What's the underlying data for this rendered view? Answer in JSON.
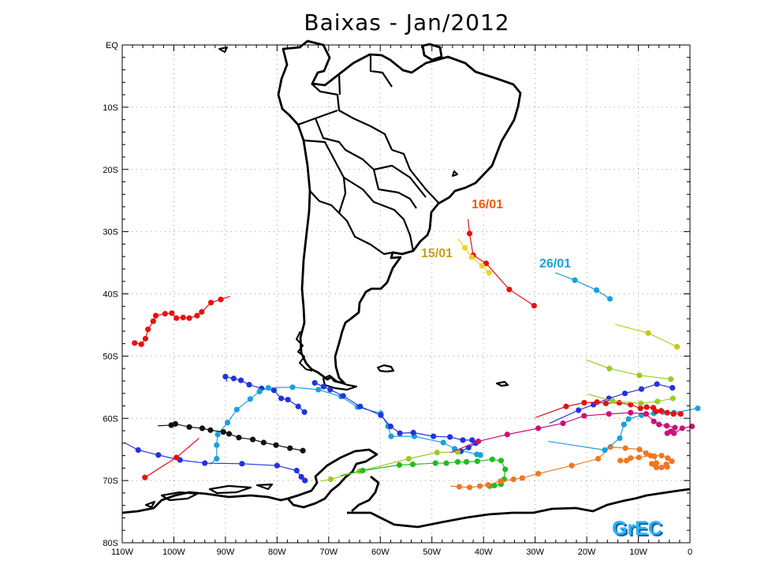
{
  "title": "Baixas - Jan/2012",
  "axes": {
    "y_ticks": [
      "EQ",
      "10S",
      "20S",
      "30S",
      "40S",
      "50S",
      "60S",
      "70S",
      "80S"
    ],
    "x_ticks": [
      "110W",
      "100W",
      "90W",
      "80W",
      "70W",
      "60W",
      "50W",
      "40W",
      "30W",
      "20W",
      "10W",
      "0"
    ],
    "lon_range": [
      -110,
      0
    ],
    "lat_range": [
      -80,
      0
    ],
    "grid": "dotted"
  },
  "logo": "GrEC",
  "labels": [
    {
      "text": "16/01",
      "color": "#f05a0a"
    },
    {
      "text": "15/01",
      "color": "#c8a012"
    },
    {
      "text": "26/01",
      "color": "#1aa0dc"
    }
  ],
  "tracks": [
    {
      "color": "#e81010",
      "points": [
        [
          -43,
          -28
        ],
        [
          -42.7,
          -30.3
        ],
        [
          -42,
          -33.8
        ],
        [
          -39.5,
          -35.1
        ],
        [
          -35,
          -39.3
        ],
        [
          -30.2,
          -41.9
        ]
      ]
    },
    {
      "color": "#ecd520",
      "points": [
        [
          -45,
          -31.1
        ],
        [
          -43.6,
          -32.6
        ],
        [
          -42.3,
          -34.1
        ],
        [
          -40.3,
          -35.5
        ],
        [
          -38.9,
          -36.6
        ]
      ]
    },
    {
      "color": "#1aa0dc",
      "points": [
        [
          -26.1,
          -36.6
        ],
        [
          -22.3,
          -37.8
        ],
        [
          -18.1,
          -39.4
        ],
        [
          -15.5,
          -40.8
        ]
      ]
    },
    {
      "color": "#e81010",
      "points": [
        [
          -89.1,
          -40.4
        ],
        [
          -90.9,
          -40.9
        ],
        [
          -92.8,
          -41.4
        ],
        [
          -94.6,
          -42.9
        ],
        [
          -95.5,
          -43.5
        ],
        [
          -97,
          -43.9
        ],
        [
          -98.2,
          -43.8
        ],
        [
          -99.5,
          -43.9
        ],
        [
          -100.4,
          -43.1
        ],
        [
          -101.7,
          -43.2
        ],
        [
          -103.5,
          -43.5
        ],
        [
          -104,
          -44.4
        ],
        [
          -105,
          -45.7
        ],
        [
          -105.5,
          -47.2
        ],
        [
          -106.3,
          -48.1
        ],
        [
          -107.6,
          -47.9
        ]
      ]
    },
    {
      "color": "#2233dd",
      "points": [
        [
          -89.7,
          -54.1
        ],
        [
          -90,
          -53.3
        ],
        [
          -88.4,
          -53.6
        ],
        [
          -87,
          -53.9
        ],
        [
          -85.4,
          -54.6
        ],
        [
          -83,
          -55.2
        ],
        [
          -80.6,
          -55.5
        ],
        [
          -79.2,
          -56.8
        ],
        [
          -77.9,
          -57
        ],
        [
          -75.9,
          -58.1
        ],
        [
          -74.7,
          -59
        ]
      ]
    },
    {
      "color": "#1aa0dc",
      "points": [
        [
          -93,
          -67.4
        ],
        [
          -91.7,
          -66.5
        ],
        [
          -91.7,
          -64.3
        ],
        [
          -91.5,
          -62.6
        ],
        [
          -89.6,
          -60.7
        ],
        [
          -87.8,
          -58.6
        ],
        [
          -85.2,
          -56.9
        ],
        [
          -83.4,
          -55.7
        ],
        [
          -81.7,
          -55.1
        ],
        [
          -77,
          -55
        ],
        [
          -72,
          -55.4
        ],
        [
          -67.6,
          -56.5
        ],
        [
          -64.4,
          -58.2
        ],
        [
          -59.9,
          -59.2
        ],
        [
          -58.5,
          -61.3
        ],
        [
          -57.9,
          -62.9
        ],
        [
          -53.4,
          -62.9
        ],
        [
          -47.8,
          -63.9
        ],
        [
          -45.6,
          -64.9
        ],
        [
          -41.3,
          -65.8
        ],
        [
          -40.6,
          -65.9
        ]
      ]
    },
    {
      "color": "#2233dd",
      "points": [
        [
          -69.4,
          -55.5
        ],
        [
          -71,
          -54.9
        ],
        [
          -72.7,
          -54.3
        ],
        [
          -69.7,
          -55.4
        ],
        [
          -67.2,
          -56.4
        ],
        [
          -63.9,
          -58.1
        ],
        [
          -59.9,
          -59.5
        ],
        [
          -58,
          -61.3
        ],
        [
          -56.2,
          -62.4
        ],
        [
          -53.6,
          -62.3
        ],
        [
          -49.7,
          -62.9
        ],
        [
          -46.5,
          -63
        ],
        [
          -44,
          -63.5
        ],
        [
          -42.2,
          -63.5
        ],
        [
          -41.5,
          -64
        ],
        [
          -42.9,
          -64.7
        ],
        [
          -44.4,
          -65.3
        ]
      ]
    },
    {
      "color": "#111111",
      "points": [
        [
          -103.1,
          -61.2
        ],
        [
          -100.5,
          -61.1
        ],
        [
          -99.7,
          -60.9
        ],
        [
          -97,
          -61.4
        ],
        [
          -94.5,
          -61.6
        ],
        [
          -92.9,
          -61.9
        ],
        [
          -90.4,
          -62.2
        ],
        [
          -89.3,
          -62.5
        ],
        [
          -87.4,
          -63.1
        ],
        [
          -84.7,
          -63.4
        ],
        [
          -82.6,
          -63.9
        ],
        [
          -80.2,
          -64.3
        ],
        [
          -77.5,
          -64.8
        ],
        [
          -75,
          -65.2
        ]
      ]
    },
    {
      "color": "#2233dd",
      "points": [
        [
          -109.6,
          -63.9
        ],
        [
          -106.9,
          -65.1
        ],
        [
          -103,
          -65.9
        ],
        [
          -98.8,
          -66.7
        ],
        [
          -94,
          -67.2
        ],
        [
          -86.8,
          -67.3
        ],
        [
          -80,
          -67.6
        ],
        [
          -76.2,
          -68.4
        ],
        [
          -75.3,
          -69.4
        ],
        [
          -74.6,
          -70
        ]
      ]
    },
    {
      "color": "#e81010",
      "points": [
        [
          -95.1,
          -63.2
        ],
        [
          -99.5,
          -66.3
        ],
        [
          -105.6,
          -69.5
        ]
      ]
    },
    {
      "color": "#99cc22",
      "points": [
        [
          -71.6,
          -70.1
        ],
        [
          -69.6,
          -69.8
        ],
        [
          -64,
          -68.5
        ],
        [
          -54.5,
          -66.5
        ],
        [
          -49,
          -65.5
        ],
        [
          -45,
          -65.4
        ]
      ]
    },
    {
      "color": "#22bb22",
      "points": [
        [
          -67.7,
          -69.2
        ],
        [
          -63.4,
          -68.4
        ],
        [
          -56.3,
          -67.5
        ],
        [
          -53.7,
          -67.4
        ],
        [
          -49.3,
          -67.2
        ],
        [
          -47.2,
          -67.2
        ],
        [
          -45,
          -67
        ],
        [
          -43.3,
          -67
        ],
        [
          -41.2,
          -66.9
        ],
        [
          -38.3,
          -66.6
        ],
        [
          -36.6,
          -66.8
        ],
        [
          -35.8,
          -68.2
        ],
        [
          -36,
          -69.8
        ],
        [
          -36.6,
          -70.6
        ],
        [
          -37.9,
          -70.8
        ],
        [
          -38.8,
          -70.9
        ]
      ]
    },
    {
      "color": "#ee7722",
      "points": [
        [
          -46.4,
          -70.9
        ],
        [
          -44.7,
          -71
        ],
        [
          -42.7,
          -71.1
        ],
        [
          -40.7,
          -70.9
        ],
        [
          -39.1,
          -70.7
        ],
        [
          -36.7,
          -70.1
        ],
        [
          -34.2,
          -69.8
        ],
        [
          -32.5,
          -69.6
        ],
        [
          -29.4,
          -68.9
        ],
        [
          -22.9,
          -67.6
        ],
        [
          -17.8,
          -66.5
        ],
        [
          -15.4,
          -64.6
        ],
        [
          -12.5,
          -64.8
        ],
        [
          -9.8,
          -65
        ],
        [
          -8.5,
          -65.6
        ],
        [
          -6.9,
          -66.1
        ],
        [
          -6.5,
          -67.2
        ],
        [
          -7,
          -67.4
        ],
        [
          -7.4,
          -67.3
        ],
        [
          -6.5,
          -67.9
        ],
        [
          -5.5,
          -67.9
        ],
        [
          -4.4,
          -67.8
        ],
        [
          -4.6,
          -67.4
        ],
        [
          -3.5,
          -66.9
        ],
        [
          -4.3,
          -66.4
        ],
        [
          -5.5,
          -66
        ],
        [
          -7.6,
          -66
        ],
        [
          -9.9,
          -66.3
        ],
        [
          -11.5,
          -66.4
        ],
        [
          -12.3,
          -66.8
        ],
        [
          -13.5,
          -66.8
        ]
      ]
    },
    {
      "color": "#1aa0dc",
      "points": [
        [
          -27.5,
          -63.7
        ],
        [
          -16.5,
          -65.1
        ],
        [
          -13.6,
          -63.2
        ],
        [
          -12.8,
          -61
        ],
        [
          -11.9,
          -60.1
        ],
        [
          -9.4,
          -59.5
        ],
        [
          -7,
          -59.2
        ],
        [
          -5.3,
          -59
        ],
        [
          -3.1,
          -59.1
        ],
        [
          1.5,
          -58.4
        ]
      ]
    },
    {
      "color": "#2233dd",
      "points": [
        [
          -27.2,
          -60.8
        ],
        [
          -21.6,
          -58.7
        ],
        [
          -18.7,
          -57.8
        ],
        [
          -15.7,
          -56.8
        ],
        [
          -12.6,
          -56
        ],
        [
          -9.4,
          -55.3
        ],
        [
          -6.4,
          -54.5
        ],
        [
          -3.4,
          -55.1
        ]
      ]
    },
    {
      "color": "#cc1177",
      "points": [
        [
          -46.4,
          -65.5
        ],
        [
          -41,
          -63.7
        ],
        [
          -35.4,
          -62.6
        ],
        [
          -29.4,
          -61.6
        ],
        [
          -24.6,
          -60.8
        ],
        [
          -20.5,
          -59.6
        ],
        [
          -15.7,
          -59.3
        ],
        [
          -11.5,
          -59.1
        ],
        [
          -8.5,
          -59.3
        ],
        [
          -7,
          -60.5
        ],
        [
          -6,
          -61
        ],
        [
          -4.5,
          -61.2
        ],
        [
          -2.9,
          -61.5
        ],
        [
          -3.7,
          -62.1
        ],
        [
          -4.4,
          -62.4
        ],
        [
          -3.1,
          -62.4
        ],
        [
          -1.5,
          -61.6
        ],
        [
          0.4,
          -61.3
        ]
      ]
    },
    {
      "color": "#e81010",
      "points": [
        [
          -30,
          -59.9
        ],
        [
          -24,
          -58.1
        ],
        [
          -20.5,
          -57.5
        ],
        [
          -18,
          -57.4
        ],
        [
          -16.3,
          -57.6
        ],
        [
          -13.7,
          -57.5
        ],
        [
          -11.5,
          -57.8
        ],
        [
          -9.6,
          -58.4
        ],
        [
          -8.4,
          -58.2
        ],
        [
          -7.1,
          -58.3
        ],
        [
          -6.6,
          -58.9
        ],
        [
          -5.6,
          -58.8
        ],
        [
          -4.4,
          -59.1
        ],
        [
          -3.2,
          -59.3
        ],
        [
          -1.8,
          -59.3
        ]
      ]
    },
    {
      "color": "#99cc22",
      "points": [
        [
          -19.8,
          -56.1
        ],
        [
          -15,
          -57.2
        ],
        [
          -9.5,
          -57.6
        ],
        [
          -6.3,
          -57.3
        ],
        [
          -3.3,
          -56.8
        ]
      ]
    },
    {
      "color": "#99cc22",
      "points": [
        [
          -20.1,
          -50.6
        ],
        [
          -15.6,
          -52
        ],
        [
          -9.8,
          -53.1
        ],
        [
          -3.7,
          -53.7
        ]
      ]
    },
    {
      "color": "#c8c818",
      "points": [
        [
          -14.5,
          -44.9
        ],
        [
          -8.1,
          -46.3
        ],
        [
          -2.5,
          -48.5
        ]
      ]
    }
  ]
}
